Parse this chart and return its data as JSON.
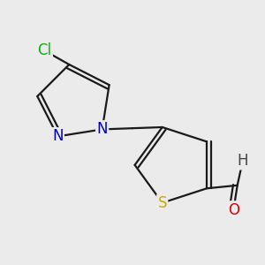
{
  "background_color": "#ebebeb",
  "atom_colors": {
    "C": "#000000",
    "N": "#0000cc",
    "S": "#ccaa00",
    "O": "#dd0000",
    "Cl": "#00bb00",
    "H": "#444444"
  },
  "bond_color": "#1a1a1a",
  "bond_width": 1.6,
  "font_size": 12,
  "fig_size": [
    3.0,
    3.0
  ],
  "dpi": 100
}
